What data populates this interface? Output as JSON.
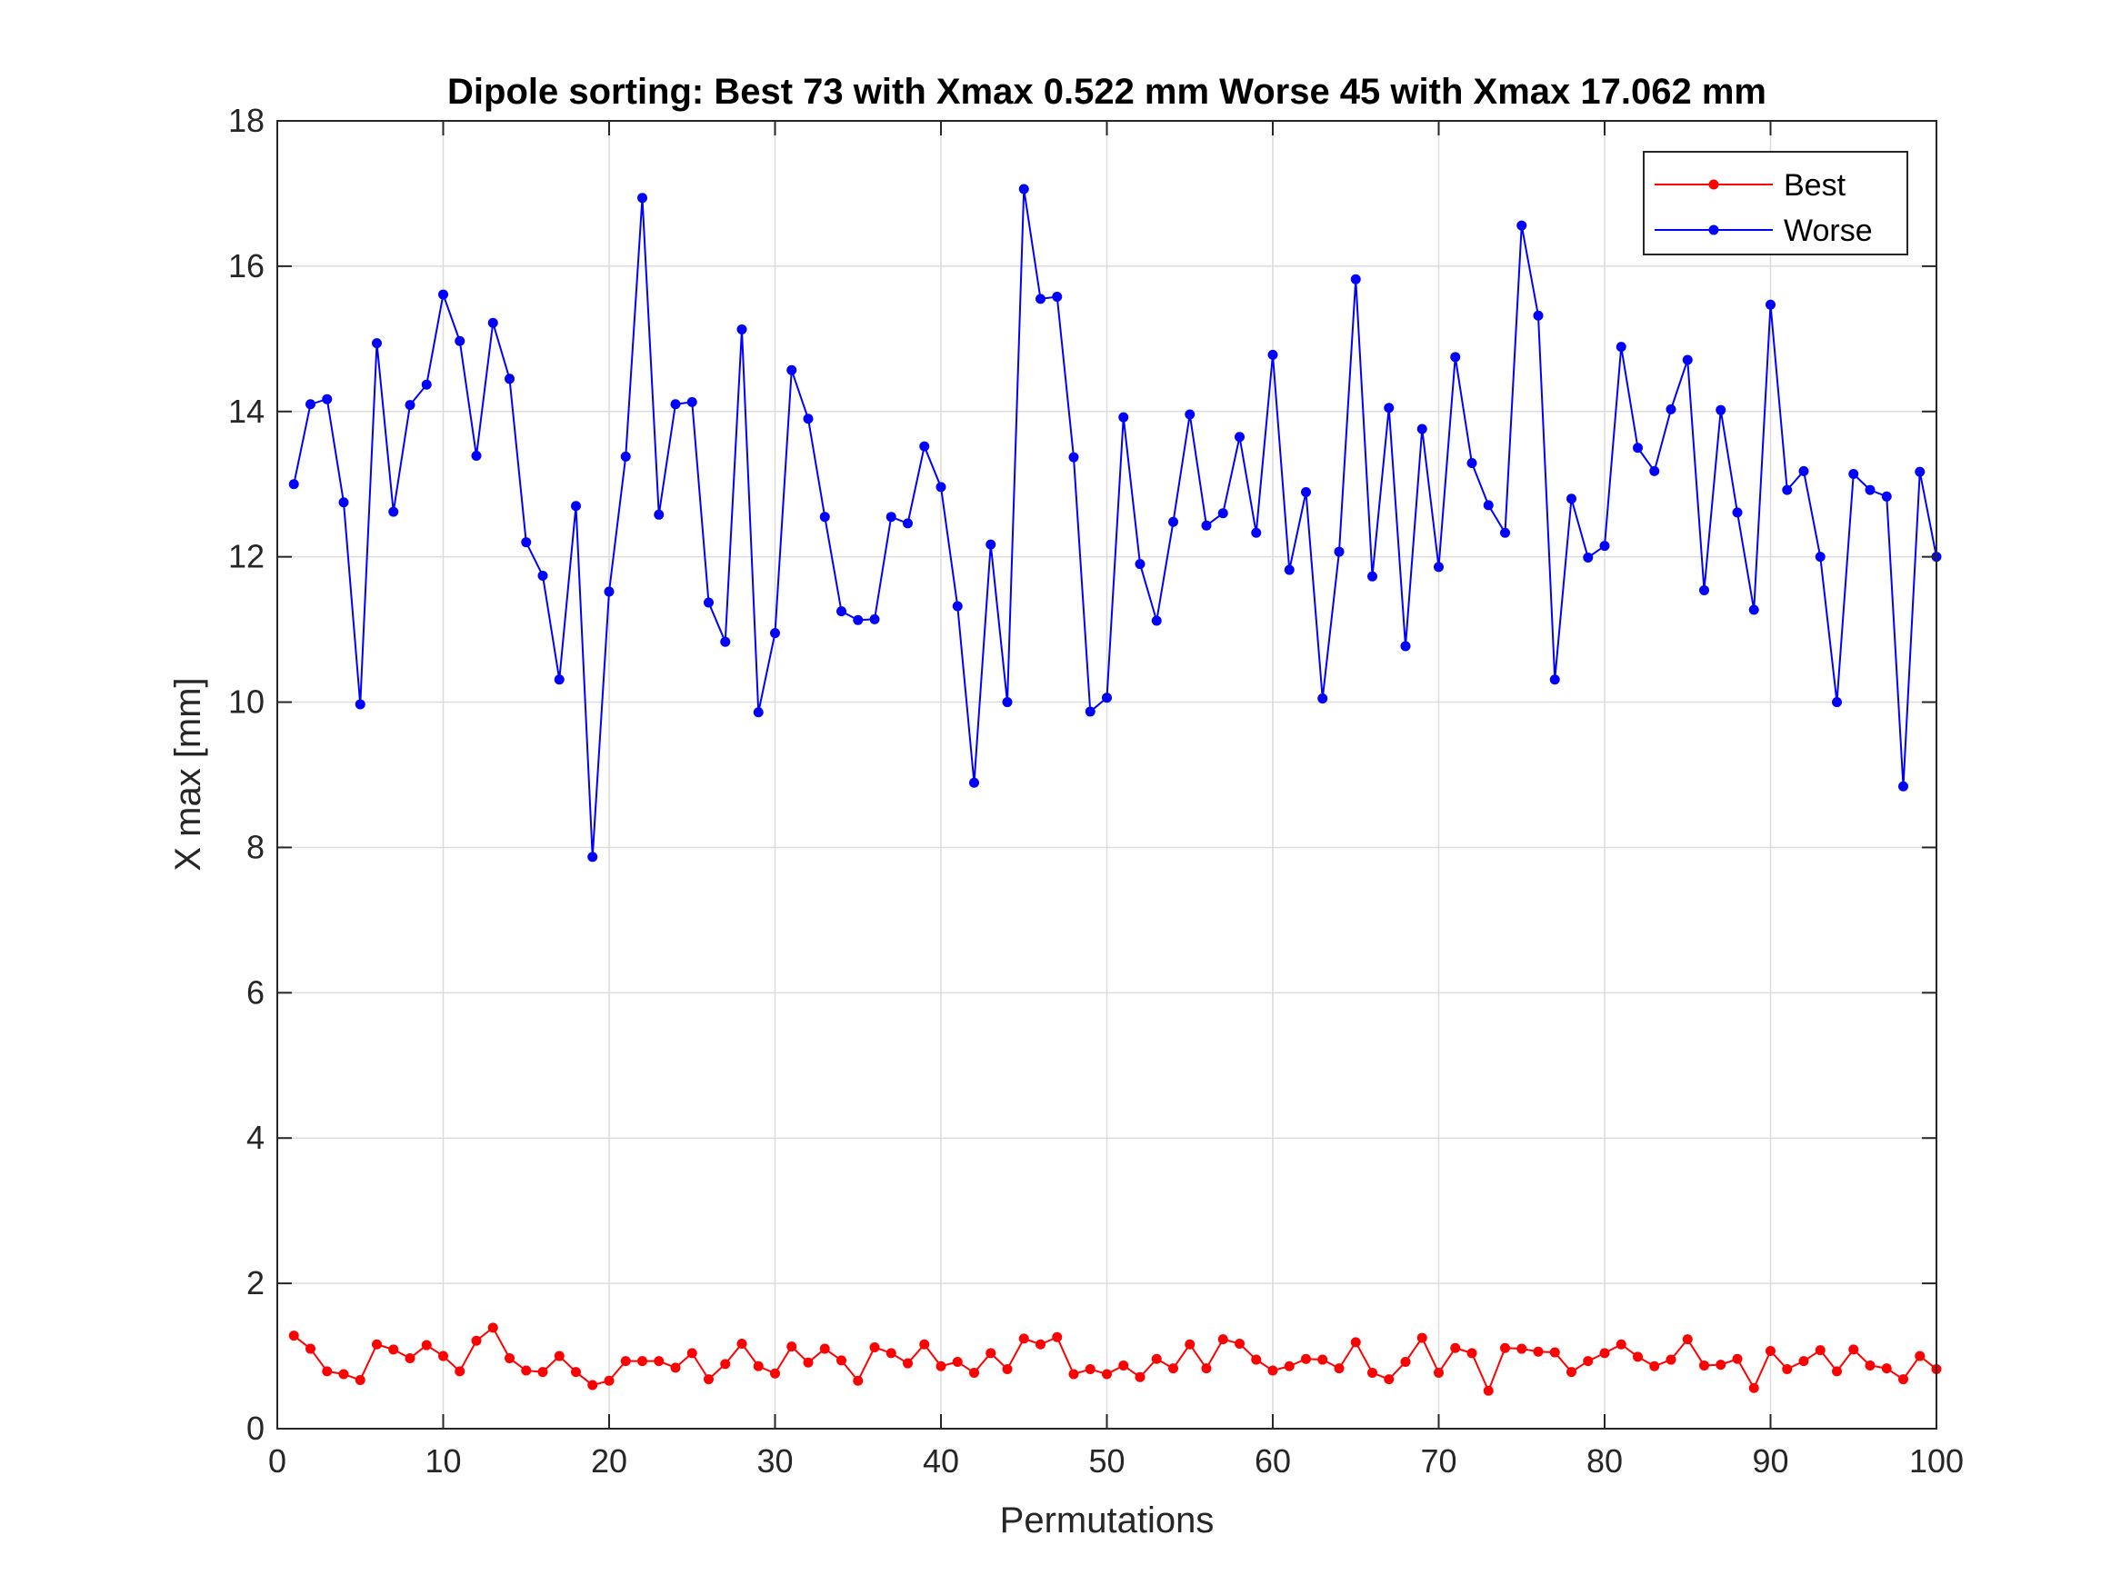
{
  "chart_data": {
    "type": "line",
    "title": "Dipole sorting:  Best 73 with Xmax 0.522 mm  Worse 45 with Xmax 17.062 mm",
    "xlabel": "Permutations",
    "ylabel": "X max [mm]",
    "xlim": [
      0,
      100
    ],
    "ylim": [
      0,
      18
    ],
    "xticks": [
      0,
      10,
      20,
      30,
      40,
      50,
      60,
      70,
      80,
      90,
      100
    ],
    "yticks": [
      0,
      2,
      4,
      6,
      8,
      10,
      12,
      14,
      16,
      18
    ],
    "xtick_labels": [
      "0",
      "10",
      "20",
      "30",
      "40",
      "50",
      "60",
      "70",
      "80",
      "90",
      "100"
    ],
    "ytick_labels": [
      "0",
      "2",
      "4",
      "6",
      "8",
      "10",
      "12",
      "14",
      "16",
      "18"
    ],
    "grid": true,
    "legend_position": "top-right",
    "x": [
      1,
      2,
      3,
      4,
      5,
      6,
      7,
      8,
      9,
      10,
      11,
      12,
      13,
      14,
      15,
      16,
      17,
      18,
      19,
      20,
      21,
      22,
      23,
      24,
      25,
      26,
      27,
      28,
      29,
      30,
      31,
      32,
      33,
      34,
      35,
      36,
      37,
      38,
      39,
      40,
      41,
      42,
      43,
      44,
      45,
      46,
      47,
      48,
      49,
      50,
      51,
      52,
      53,
      54,
      55,
      56,
      57,
      58,
      59,
      60,
      61,
      62,
      63,
      64,
      65,
      66,
      67,
      68,
      69,
      70,
      71,
      72,
      73,
      74,
      75,
      76,
      77,
      78,
      79,
      80,
      81,
      82,
      83,
      84,
      85,
      86,
      87,
      88,
      89,
      90,
      91,
      92,
      93,
      94,
      95,
      96,
      97,
      98,
      99,
      100
    ],
    "series": [
      {
        "name": "Best",
        "color": "#ff0000",
        "values": [
          1.28,
          1.1,
          0.79,
          0.75,
          0.67,
          1.16,
          1.09,
          0.97,
          1.15,
          1.0,
          0.79,
          1.21,
          1.39,
          0.97,
          0.8,
          0.78,
          1.0,
          0.78,
          0.6,
          0.66,
          0.93,
          0.93,
          0.93,
          0.84,
          1.04,
          0.68,
          0.89,
          1.17,
          0.86,
          0.76,
          1.13,
          0.91,
          1.1,
          0.94,
          0.66,
          1.12,
          1.04,
          0.9,
          1.16,
          0.86,
          0.92,
          0.77,
          1.04,
          0.82,
          1.24,
          1.16,
          1.26,
          0.75,
          0.82,
          0.75,
          0.87,
          0.71,
          0.96,
          0.83,
          1.16,
          0.83,
          1.23,
          1.17,
          0.95,
          0.8,
          0.86,
          0.96,
          0.95,
          0.83,
          1.19,
          0.77,
          0.68,
          0.92,
          1.25,
          0.77,
          1.11,
          1.04,
          0.522,
          1.11,
          1.1,
          1.06,
          1.05,
          0.78,
          0.93,
          1.04,
          1.16,
          0.99,
          0.86,
          0.95,
          1.23,
          0.87,
          0.88,
          0.96,
          0.56,
          1.07,
          0.82,
          0.93,
          1.08,
          0.79,
          1.09,
          0.87,
          0.83,
          0.68,
          1.0,
          0.82
        ]
      },
      {
        "name": "Worse",
        "color": "#0000ff",
        "values": [
          13.0,
          14.1,
          14.17,
          12.75,
          9.97,
          14.94,
          12.62,
          14.09,
          14.37,
          15.61,
          14.97,
          13.39,
          15.22,
          14.45,
          12.2,
          11.74,
          10.31,
          12.7,
          7.87,
          11.52,
          13.38,
          16.94,
          12.58,
          14.1,
          14.13,
          11.37,
          10.83,
          15.13,
          9.86,
          10.95,
          14.57,
          13.9,
          12.55,
          11.25,
          11.13,
          11.14,
          12.55,
          12.46,
          13.52,
          12.96,
          11.32,
          8.89,
          12.17,
          10.0,
          17.062,
          15.55,
          15.58,
          13.37,
          9.87,
          10.06,
          13.92,
          11.9,
          11.12,
          12.48,
          13.96,
          12.43,
          12.6,
          13.65,
          12.33,
          14.78,
          11.82,
          12.89,
          10.05,
          12.07,
          15.82,
          11.73,
          14.05,
          10.77,
          13.76,
          11.86,
          14.75,
          13.29,
          12.71,
          12.33,
          16.56,
          15.32,
          10.31,
          12.8,
          11.99,
          12.15,
          14.89,
          13.5,
          13.18,
          14.03,
          14.71,
          11.54,
          14.02,
          12.61,
          11.27,
          15.47,
          12.92,
          13.18,
          12.0,
          10.0,
          13.14,
          12.92,
          12.83,
          8.84,
          13.17,
          12.0
        ]
      }
    ]
  }
}
